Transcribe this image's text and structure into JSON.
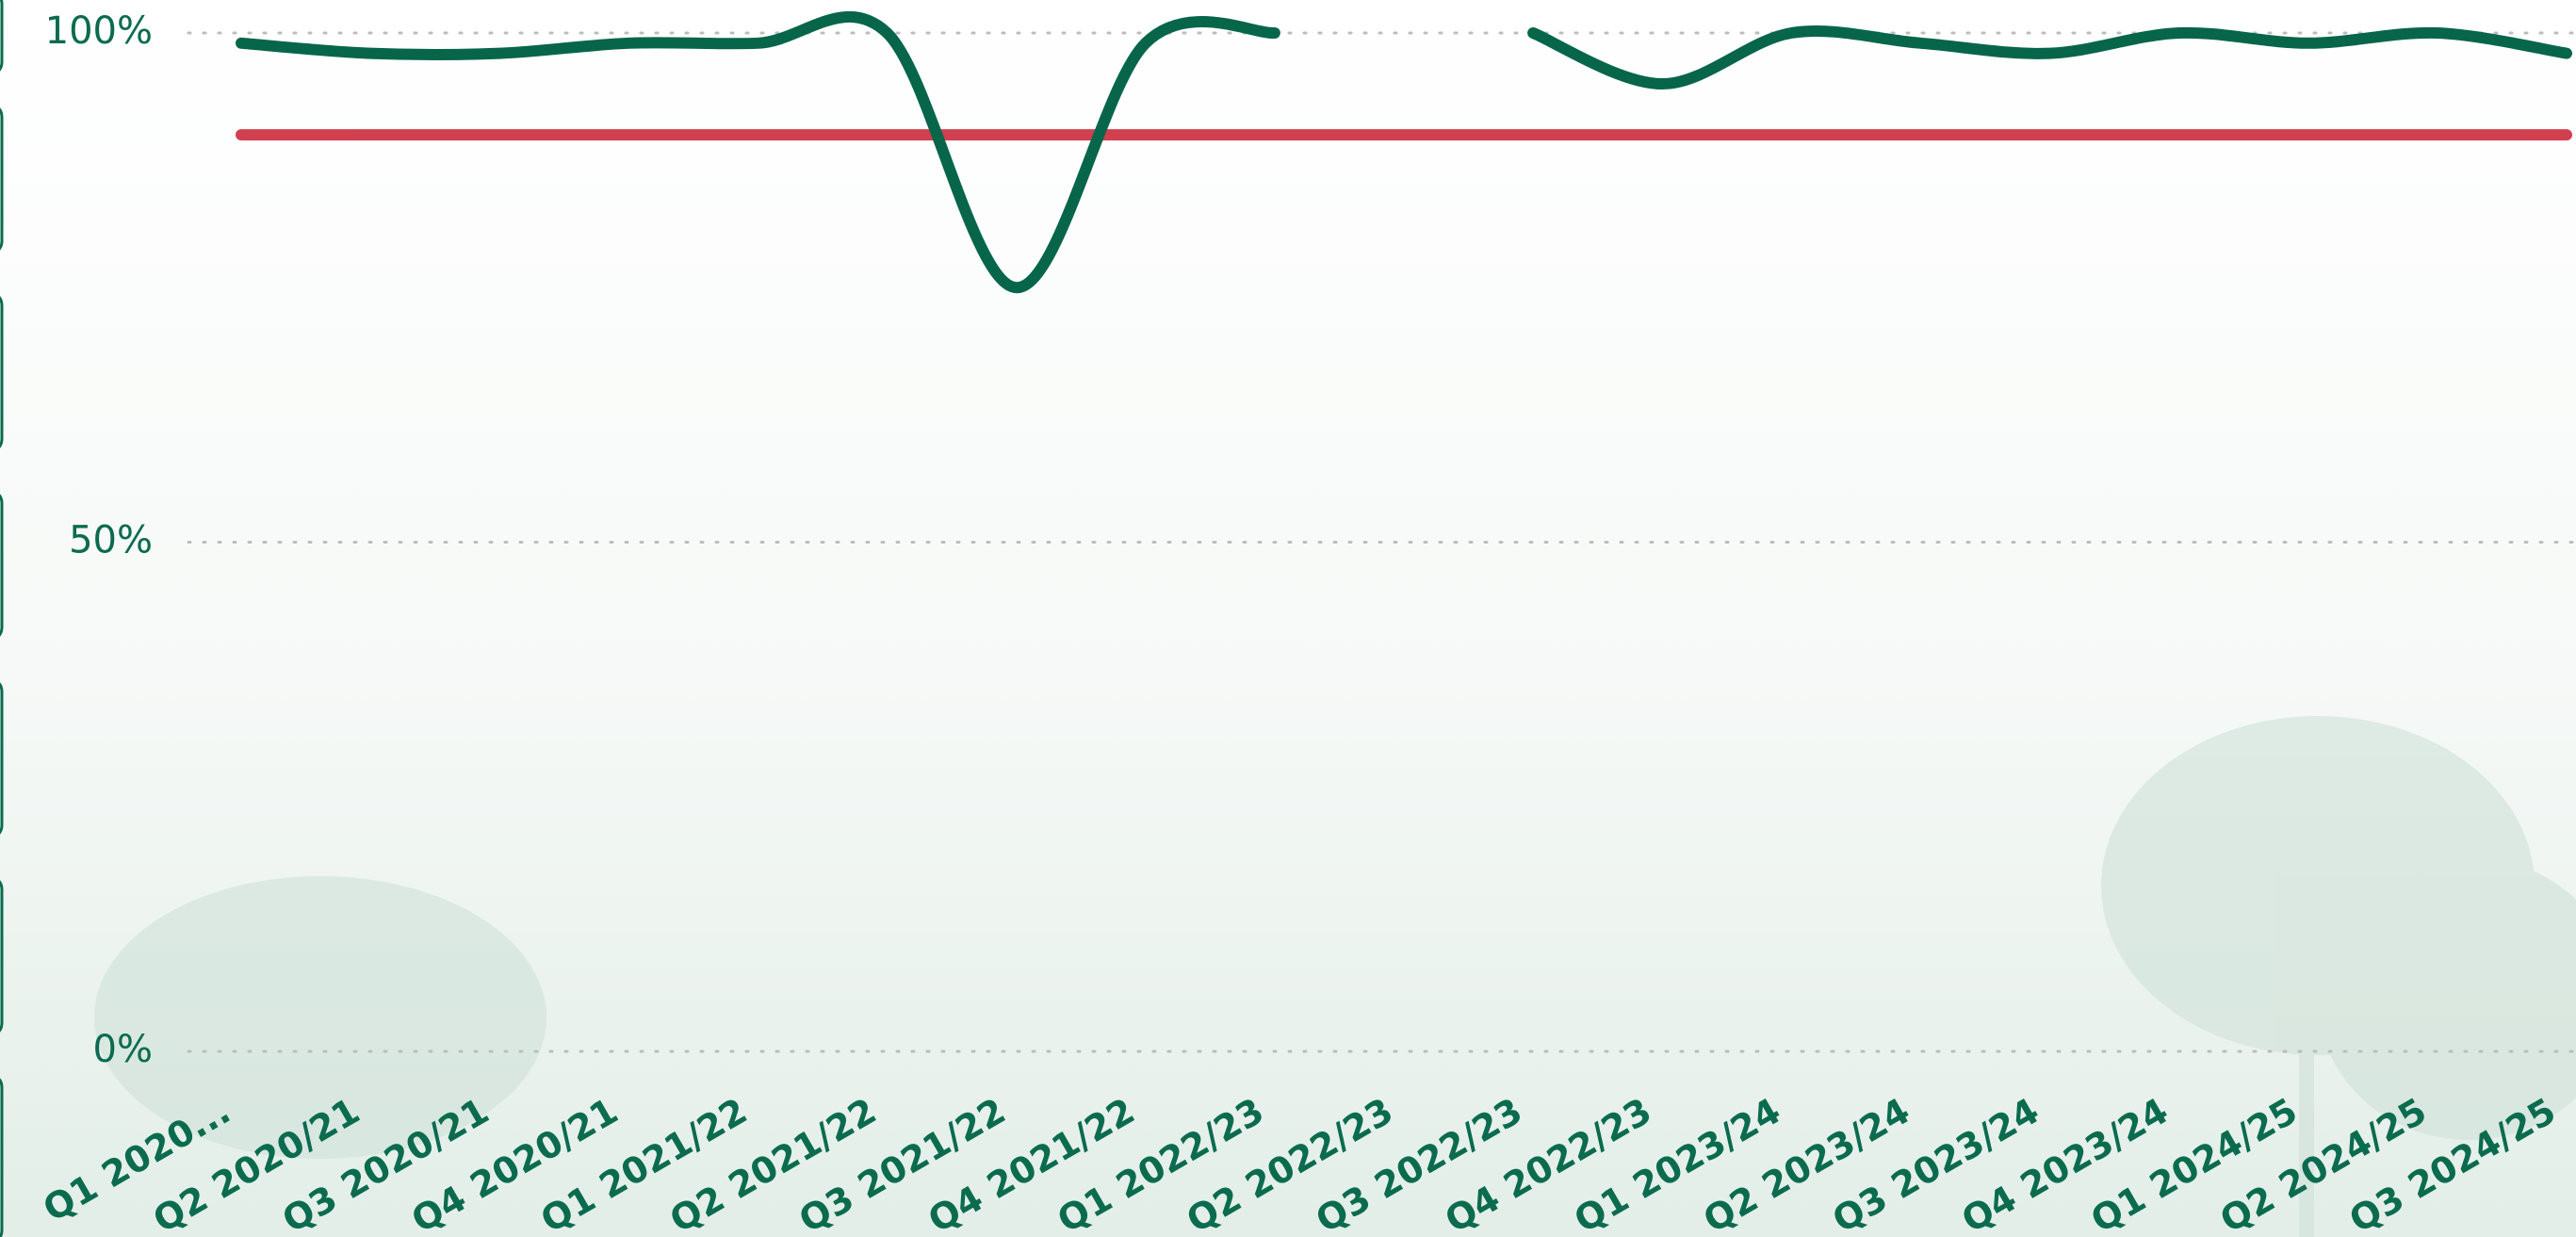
{
  "chart_data": {
    "type": "line",
    "categories": [
      "Q1 2020...",
      "Q2 2020/21",
      "Q3 2020/21",
      "Q4 2020/21",
      "Q1 2021/22",
      "Q2 2021/22",
      "Q3 2021/22",
      "Q4 2021/22",
      "Q1 2022/23",
      "Q2 2022/23",
      "Q3 2022/23",
      "Q4 2022/23",
      "Q1 2023/24",
      "Q2 2023/24",
      "Q3 2023/24",
      "Q4 2023/24",
      "Q1 2024/25",
      "Q2 2024/25",
      "Q3 2024/25"
    ],
    "series": [
      {
        "color": "#07654a",
        "values": [
          99,
          98,
          98,
          99,
          99,
          100,
          75,
          99,
          100,
          null,
          100,
          95,
          100,
          99,
          98,
          100,
          99,
          100,
          98
        ]
      },
      {
        "color": "#d1404f",
        "values": [
          90,
          90,
          90,
          90,
          90,
          90,
          90,
          90,
          90,
          90,
          90,
          90,
          90,
          90,
          90,
          90,
          90,
          90,
          90
        ]
      }
    ],
    "ylim": [
      0,
      100
    ],
    "yticks": [
      {
        "value": 0,
        "label": "0%"
      },
      {
        "value": 50,
        "label": "50%"
      },
      {
        "value": 100,
        "label": "100%"
      }
    ],
    "grid": true
  }
}
